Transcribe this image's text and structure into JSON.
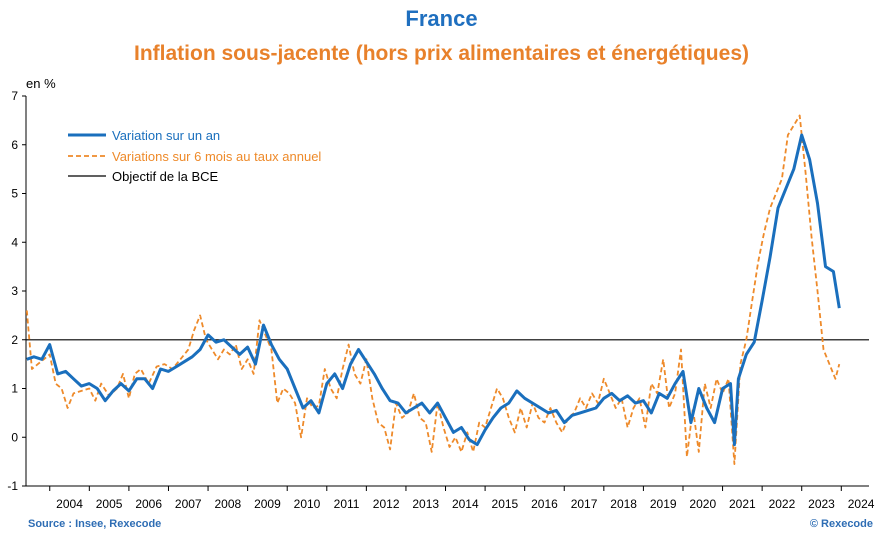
{
  "header": {
    "title": "France",
    "subtitle": "Inflation sous-jacente (hors prix alimentaires et énergétiques)"
  },
  "footer": {
    "source": "Source : Insee, Rexecode",
    "copyright": "© Rexecode"
  },
  "colors": {
    "title": "#1f6fbf",
    "subtitle": "#e8812b",
    "series_annual": "#1a6fbd",
    "series_6m": "#ee8a2a",
    "target": "#000000"
  },
  "chart_data": {
    "type": "line",
    "ylabel": "en %",
    "ylim": [
      -1,
      7
    ],
    "yticks": [
      -1,
      0,
      1,
      2,
      3,
      4,
      5,
      6,
      7
    ],
    "xlim": [
      2003.4,
      2024.7
    ],
    "xticks": [
      "2004",
      "2005",
      "2006",
      "2007",
      "2008",
      "2009",
      "2010",
      "2011",
      "2012",
      "2013",
      "2014",
      "2015",
      "2016",
      "2017",
      "2018",
      "2019",
      "2020",
      "2021",
      "2022",
      "2023",
      "2024"
    ],
    "grid": false,
    "legend_position": "top-left",
    "series": [
      {
        "name": "Variation sur un an",
        "style": "solid",
        "points": [
          [
            2003.42,
            1.6
          ],
          [
            2003.6,
            1.65
          ],
          [
            2003.8,
            1.6
          ],
          [
            2004.0,
            1.9
          ],
          [
            2004.2,
            1.3
          ],
          [
            2004.4,
            1.35
          ],
          [
            2004.6,
            1.2
          ],
          [
            2004.8,
            1.05
          ],
          [
            2005.0,
            1.1
          ],
          [
            2005.2,
            1.0
          ],
          [
            2005.4,
            0.75
          ],
          [
            2005.6,
            0.95
          ],
          [
            2005.8,
            1.1
          ],
          [
            2006.0,
            0.95
          ],
          [
            2006.2,
            1.2
          ],
          [
            2006.4,
            1.2
          ],
          [
            2006.6,
            1.0
          ],
          [
            2006.8,
            1.4
          ],
          [
            2007.0,
            1.35
          ],
          [
            2007.2,
            1.45
          ],
          [
            2007.4,
            1.55
          ],
          [
            2007.6,
            1.65
          ],
          [
            2007.8,
            1.8
          ],
          [
            2008.0,
            2.1
          ],
          [
            2008.2,
            1.95
          ],
          [
            2008.4,
            2.0
          ],
          [
            2008.6,
            1.85
          ],
          [
            2008.8,
            1.7
          ],
          [
            2009.0,
            1.85
          ],
          [
            2009.2,
            1.5
          ],
          [
            2009.4,
            2.3
          ],
          [
            2009.6,
            1.9
          ],
          [
            2009.8,
            1.6
          ],
          [
            2010.0,
            1.4
          ],
          [
            2010.2,
            1.0
          ],
          [
            2010.4,
            0.6
          ],
          [
            2010.6,
            0.75
          ],
          [
            2010.8,
            0.5
          ],
          [
            2011.0,
            1.1
          ],
          [
            2011.2,
            1.3
          ],
          [
            2011.4,
            1.0
          ],
          [
            2011.6,
            1.5
          ],
          [
            2011.8,
            1.8
          ],
          [
            2012.0,
            1.55
          ],
          [
            2012.2,
            1.3
          ],
          [
            2012.4,
            1.0
          ],
          [
            2012.6,
            0.75
          ],
          [
            2012.8,
            0.7
          ],
          [
            2013.0,
            0.5
          ],
          [
            2013.2,
            0.6
          ],
          [
            2013.4,
            0.7
          ],
          [
            2013.6,
            0.5
          ],
          [
            2013.8,
            0.7
          ],
          [
            2014.0,
            0.4
          ],
          [
            2014.2,
            0.1
          ],
          [
            2014.4,
            0.2
          ],
          [
            2014.6,
            -0.05
          ],
          [
            2014.8,
            -0.15
          ],
          [
            2015.0,
            0.15
          ],
          [
            2015.2,
            0.4
          ],
          [
            2015.4,
            0.6
          ],
          [
            2015.6,
            0.7
          ],
          [
            2015.8,
            0.95
          ],
          [
            2016.0,
            0.8
          ],
          [
            2016.2,
            0.7
          ],
          [
            2016.4,
            0.6
          ],
          [
            2016.6,
            0.5
          ],
          [
            2016.8,
            0.55
          ],
          [
            2017.0,
            0.3
          ],
          [
            2017.2,
            0.45
          ],
          [
            2017.4,
            0.5
          ],
          [
            2017.6,
            0.55
          ],
          [
            2017.8,
            0.6
          ],
          [
            2018.0,
            0.8
          ],
          [
            2018.2,
            0.9
          ],
          [
            2018.4,
            0.75
          ],
          [
            2018.6,
            0.85
          ],
          [
            2018.8,
            0.7
          ],
          [
            2019.0,
            0.75
          ],
          [
            2019.2,
            0.5
          ],
          [
            2019.4,
            0.9
          ],
          [
            2019.6,
            0.8
          ],
          [
            2019.8,
            1.1
          ],
          [
            2020.0,
            1.35
          ],
          [
            2020.2,
            0.3
          ],
          [
            2020.4,
            1.0
          ],
          [
            2020.6,
            0.6
          ],
          [
            2020.8,
            0.3
          ],
          [
            2021.0,
            1.0
          ],
          [
            2021.2,
            1.1
          ],
          [
            2021.3,
            -0.15
          ],
          [
            2021.4,
            1.2
          ],
          [
            2021.6,
            1.7
          ],
          [
            2021.8,
            1.95
          ],
          [
            2022.0,
            2.8
          ],
          [
            2022.2,
            3.7
          ],
          [
            2022.4,
            4.7
          ],
          [
            2022.6,
            5.1
          ],
          [
            2022.8,
            5.5
          ],
          [
            2023.0,
            6.2
          ],
          [
            2023.2,
            5.7
          ],
          [
            2023.4,
            4.8
          ],
          [
            2023.6,
            3.5
          ],
          [
            2023.8,
            3.4
          ],
          [
            2023.95,
            2.65
          ]
        ]
      },
      {
        "name": "Variations sur 6 mois au taux annuel",
        "style": "dashed",
        "points": [
          [
            2003.42,
            2.6
          ],
          [
            2003.55,
            1.4
          ],
          [
            2003.7,
            1.5
          ],
          [
            2003.85,
            1.6
          ],
          [
            2004.0,
            1.7
          ],
          [
            2004.15,
            1.1
          ],
          [
            2004.3,
            1.0
          ],
          [
            2004.45,
            0.6
          ],
          [
            2004.6,
            0.9
          ],
          [
            2004.8,
            0.95
          ],
          [
            2005.0,
            1.0
          ],
          [
            2005.15,
            0.75
          ],
          [
            2005.3,
            1.1
          ],
          [
            2005.5,
            0.85
          ],
          [
            2005.7,
            1.0
          ],
          [
            2005.85,
            1.3
          ],
          [
            2006.0,
            0.8
          ],
          [
            2006.15,
            1.3
          ],
          [
            2006.3,
            1.4
          ],
          [
            2006.5,
            1.1
          ],
          [
            2006.7,
            1.45
          ],
          [
            2006.9,
            1.5
          ],
          [
            2007.1,
            1.4
          ],
          [
            2007.3,
            1.6
          ],
          [
            2007.5,
            1.8
          ],
          [
            2007.65,
            2.2
          ],
          [
            2007.8,
            2.5
          ],
          [
            2007.95,
            2.0
          ],
          [
            2008.1,
            1.8
          ],
          [
            2008.25,
            1.6
          ],
          [
            2008.4,
            1.8
          ],
          [
            2008.55,
            1.7
          ],
          [
            2008.7,
            1.9
          ],
          [
            2008.85,
            1.4
          ],
          [
            2009.0,
            1.6
          ],
          [
            2009.15,
            1.3
          ],
          [
            2009.3,
            2.4
          ],
          [
            2009.45,
            2.1
          ],
          [
            2009.6,
            1.8
          ],
          [
            2009.75,
            0.7
          ],
          [
            2009.9,
            1.0
          ],
          [
            2010.05,
            0.9
          ],
          [
            2010.2,
            0.7
          ],
          [
            2010.35,
            0.0
          ],
          [
            2010.5,
            0.8
          ],
          [
            2010.65,
            0.6
          ],
          [
            2010.8,
            0.65
          ],
          [
            2010.95,
            1.4
          ],
          [
            2011.1,
            1.0
          ],
          [
            2011.25,
            0.8
          ],
          [
            2011.4,
            1.4
          ],
          [
            2011.55,
            1.9
          ],
          [
            2011.7,
            1.3
          ],
          [
            2011.85,
            1.1
          ],
          [
            2012.0,
            1.6
          ],
          [
            2012.15,
            0.8
          ],
          [
            2012.3,
            0.3
          ],
          [
            2012.45,
            0.2
          ],
          [
            2012.6,
            -0.25
          ],
          [
            2012.75,
            0.7
          ],
          [
            2012.9,
            0.4
          ],
          [
            2013.05,
            0.5
          ],
          [
            2013.2,
            0.9
          ],
          [
            2013.35,
            0.4
          ],
          [
            2013.5,
            0.3
          ],
          [
            2013.65,
            -0.3
          ],
          [
            2013.8,
            0.7
          ],
          [
            2013.95,
            0.2
          ],
          [
            2014.1,
            -0.2
          ],
          [
            2014.25,
            0.0
          ],
          [
            2014.4,
            -0.3
          ],
          [
            2014.55,
            0.1
          ],
          [
            2014.7,
            -0.3
          ],
          [
            2014.85,
            0.3
          ],
          [
            2015.0,
            0.2
          ],
          [
            2015.15,
            0.6
          ],
          [
            2015.3,
            1.0
          ],
          [
            2015.45,
            0.8
          ],
          [
            2015.6,
            0.4
          ],
          [
            2015.75,
            0.1
          ],
          [
            2015.9,
            0.6
          ],
          [
            2016.05,
            0.2
          ],
          [
            2016.2,
            0.7
          ],
          [
            2016.35,
            0.4
          ],
          [
            2016.5,
            0.3
          ],
          [
            2016.65,
            0.6
          ],
          [
            2016.8,
            0.3
          ],
          [
            2016.95,
            0.1
          ],
          [
            2017.1,
            0.4
          ],
          [
            2017.25,
            0.5
          ],
          [
            2017.4,
            0.8
          ],
          [
            2017.55,
            0.6
          ],
          [
            2017.7,
            0.9
          ],
          [
            2017.85,
            0.7
          ],
          [
            2018.0,
            1.2
          ],
          [
            2018.15,
            0.9
          ],
          [
            2018.3,
            0.6
          ],
          [
            2018.45,
            0.8
          ],
          [
            2018.6,
            0.2
          ],
          [
            2018.75,
            0.6
          ],
          [
            2018.9,
            0.8
          ],
          [
            2019.05,
            0.2
          ],
          [
            2019.2,
            1.1
          ],
          [
            2019.35,
            0.9
          ],
          [
            2019.5,
            1.6
          ],
          [
            2019.65,
            0.6
          ],
          [
            2019.8,
            0.9
          ],
          [
            2019.95,
            1.8
          ],
          [
            2020.1,
            -0.4
          ],
          [
            2020.25,
            0.6
          ],
          [
            2020.4,
            -0.3
          ],
          [
            2020.55,
            1.1
          ],
          [
            2020.7,
            0.6
          ],
          [
            2020.85,
            1.2
          ],
          [
            2021.0,
            0.9
          ],
          [
            2021.15,
            1.2
          ],
          [
            2021.3,
            -0.55
          ],
          [
            2021.45,
            1.5
          ],
          [
            2021.6,
            2.0
          ],
          [
            2021.75,
            2.8
          ],
          [
            2021.9,
            3.6
          ],
          [
            2022.05,
            4.2
          ],
          [
            2022.2,
            4.7
          ],
          [
            2022.35,
            5.0
          ],
          [
            2022.5,
            5.3
          ],
          [
            2022.65,
            6.2
          ],
          [
            2022.8,
            6.4
          ],
          [
            2022.95,
            6.6
          ],
          [
            2023.1,
            5.4
          ],
          [
            2023.25,
            4.1
          ],
          [
            2023.4,
            3.0
          ],
          [
            2023.55,
            1.8
          ],
          [
            2023.7,
            1.5
          ],
          [
            2023.85,
            1.2
          ],
          [
            2023.95,
            1.5
          ]
        ]
      },
      {
        "name": "Objectif de la BCE",
        "style": "solid",
        "points": [
          [
            2003.4,
            2
          ],
          [
            2024.7,
            2
          ]
        ]
      }
    ]
  }
}
